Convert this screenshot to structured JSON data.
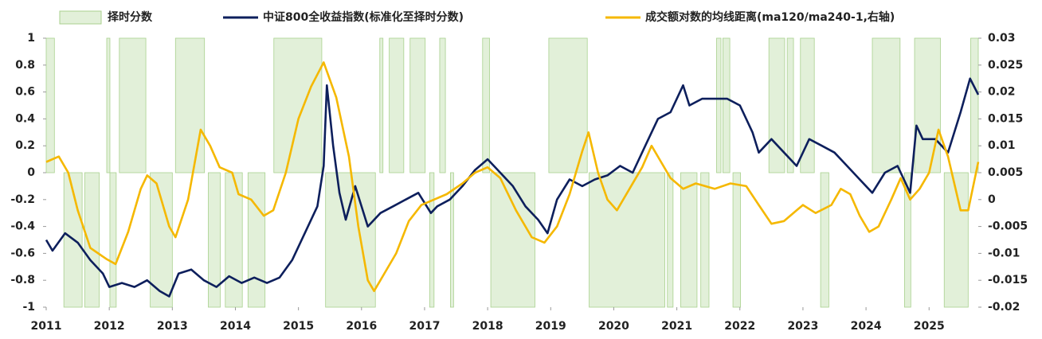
{
  "chart_data": {
    "type": "line",
    "xlim": [
      2011,
      2025.78
    ],
    "xticks": [
      2011,
      2012,
      2013,
      2014,
      2015,
      2016,
      2017,
      2018,
      2019,
      2020,
      2021,
      2022,
      2023,
      2024,
      2025
    ],
    "ylim": [
      -1,
      1
    ],
    "yticks": [
      1,
      0.8,
      0.6,
      0.4,
      0.2,
      0,
      -0.2,
      -0.4,
      -0.6,
      -0.8,
      -1
    ],
    "y2lim": [
      -0.02,
      0.03
    ],
    "y2ticks": [
      0.03,
      0.025,
      0.02,
      0.015,
      0.01,
      0.005,
      0,
      -0.005,
      -0.01,
      -0.015,
      -0.02
    ],
    "legend": "top",
    "series": [
      {
        "name": "择时分数",
        "color": "#e2f0d9",
        "style": "step-area",
        "bins": [
          2011.0,
          2011.13,
          2011.28,
          2011.57,
          2011.61,
          2011.84,
          2011.96,
          2012.01,
          2012.11,
          2012.16,
          2012.58,
          2012.65,
          2013.0,
          2013.05,
          2013.51,
          2013.57,
          2013.76,
          2013.84,
          2014.11,
          2014.2,
          2014.47,
          2014.61,
          2015.37,
          2015.43,
          2016.22,
          2016.29,
          2016.34,
          2016.44,
          2016.67,
          2016.77,
          2017.01,
          2017.08,
          2017.15,
          2017.24,
          2017.33,
          2017.41,
          2017.46,
          2017.92,
          2018.03,
          2018.05,
          2018.75,
          2018.97,
          2019.58,
          2019.61,
          2020.81,
          2020.85,
          2020.94,
          2021.06,
          2021.32,
          2021.38,
          2021.51,
          2021.63,
          2021.7,
          2021.73,
          2021.84,
          2021.89,
          2022.01,
          2022.46,
          2022.71,
          2022.75,
          2022.85,
          2022.96,
          2023.18,
          2023.28,
          2023.41,
          2024.1,
          2024.54,
          2024.61,
          2024.71,
          2024.77,
          2025.18,
          2025.24,
          2025.62,
          2025.66,
          2025.78
        ],
        "values": [
          1,
          0,
          -1,
          0,
          -1,
          0,
          1,
          -1,
          0,
          1,
          0,
          -1,
          0,
          1,
          0,
          -1,
          0,
          -1,
          0,
          -1,
          0,
          1,
          0,
          -1,
          0,
          1,
          0,
          1,
          0,
          1,
          0,
          -1,
          0,
          1,
          0,
          -1,
          0,
          1,
          0,
          -1,
          0,
          1,
          0,
          -1,
          0,
          -1,
          0,
          -1,
          0,
          -1,
          0,
          1,
          0,
          1,
          0,
          -1,
          0,
          1,
          0,
          1,
          0,
          1,
          0,
          -1,
          0,
          1,
          0,
          -1,
          0,
          1,
          0,
          -1,
          0,
          1
        ]
      },
      {
        "name": "中证800全收益指数(标准化至择时分数)",
        "color": "#0d1f5c",
        "x": [
          2011.0,
          2011.1,
          2011.3,
          2011.5,
          2011.7,
          2011.9,
          2012.0,
          2012.2,
          2012.4,
          2012.6,
          2012.8,
          2012.95,
          2013.1,
          2013.3,
          2013.5,
          2013.7,
          2013.9,
          2014.1,
          2014.3,
          2014.5,
          2014.7,
          2014.9,
          2015.1,
          2015.3,
          2015.4,
          2015.45,
          2015.55,
          2015.65,
          2015.75,
          2015.9,
          2016.0,
          2016.1,
          2016.3,
          2016.5,
          2016.7,
          2016.9,
          2017.1,
          2017.2,
          2017.4,
          2017.6,
          2017.8,
          2018.0,
          2018.2,
          2018.4,
          2018.6,
          2018.8,
          2018.95,
          2019.1,
          2019.3,
          2019.5,
          2019.7,
          2019.9,
          2020.1,
          2020.3,
          2020.5,
          2020.7,
          2020.9,
          2021.1,
          2021.2,
          2021.4,
          2021.6,
          2021.8,
          2022.0,
          2022.2,
          2022.3,
          2022.5,
          2022.7,
          2022.9,
          2023.1,
          2023.3,
          2023.5,
          2023.7,
          2023.9,
          2024.1,
          2024.3,
          2024.5,
          2024.7,
          2024.8,
          2024.9,
          2025.1,
          2025.3,
          2025.5,
          2025.65,
          2025.78
        ],
        "values": [
          -0.5,
          -0.58,
          -0.45,
          -0.52,
          -0.65,
          -0.75,
          -0.85,
          -0.82,
          -0.85,
          -0.8,
          -0.88,
          -0.92,
          -0.75,
          -0.72,
          -0.8,
          -0.85,
          -0.77,
          -0.82,
          -0.78,
          -0.82,
          -0.78,
          -0.65,
          -0.45,
          -0.25,
          0.05,
          0.65,
          0.2,
          -0.15,
          -0.35,
          -0.1,
          -0.25,
          -0.4,
          -0.3,
          -0.25,
          -0.2,
          -0.15,
          -0.3,
          -0.25,
          -0.2,
          -0.1,
          0.02,
          0.1,
          0.0,
          -0.1,
          -0.25,
          -0.35,
          -0.45,
          -0.2,
          -0.05,
          -0.1,
          -0.05,
          -0.02,
          0.05,
          0.0,
          0.2,
          0.4,
          0.45,
          0.65,
          0.5,
          0.55,
          0.55,
          0.55,
          0.5,
          0.3,
          0.15,
          0.25,
          0.15,
          0.05,
          0.25,
          0.2,
          0.15,
          0.05,
          -0.05,
          -0.15,
          0.0,
          0.05,
          -0.15,
          0.35,
          0.25,
          0.25,
          0.15,
          0.45,
          0.7,
          0.58
        ]
      },
      {
        "name": "成交额对数的均线距离(ma120/ma240-1,右轴)",
        "color": "#f5b800",
        "axis": "y2",
        "x": [
          2011.0,
          2011.2,
          2011.35,
          2011.5,
          2011.7,
          2011.95,
          2012.1,
          2012.3,
          2012.5,
          2012.6,
          2012.75,
          2012.95,
          2013.05,
          2013.25,
          2013.45,
          2013.6,
          2013.75,
          2013.95,
          2014.05,
          2014.25,
          2014.45,
          2014.6,
          2014.8,
          2015.0,
          2015.2,
          2015.4,
          2015.6,
          2015.8,
          2015.95,
          2016.1,
          2016.2,
          2016.35,
          2016.55,
          2016.75,
          2016.95,
          2017.15,
          2017.35,
          2017.6,
          2017.8,
          2018.0,
          2018.2,
          2018.45,
          2018.7,
          2018.9,
          2019.1,
          2019.3,
          2019.5,
          2019.6,
          2019.75,
          2019.9,
          2020.05,
          2020.25,
          2020.45,
          2020.6,
          2020.75,
          2020.9,
          2021.1,
          2021.3,
          2021.6,
          2021.85,
          2022.1,
          2022.3,
          2022.5,
          2022.7,
          2022.9,
          2023.0,
          2023.2,
          2023.45,
          2023.6,
          2023.75,
          2023.9,
          2024.05,
          2024.2,
          2024.4,
          2024.55,
          2024.7,
          2024.85,
          2025.0,
          2025.15,
          2025.3,
          2025.5,
          2025.62,
          2025.78
        ],
        "values": [
          0.007,
          0.008,
          0.005,
          -0.002,
          -0.009,
          -0.011,
          -0.012,
          -0.006,
          0.002,
          0.0045,
          0.003,
          -0.005,
          -0.007,
          0.0,
          0.013,
          0.01,
          0.006,
          0.005,
          0.001,
          0.0,
          -0.003,
          -0.002,
          0.005,
          0.015,
          0.021,
          0.0255,
          0.019,
          0.008,
          -0.005,
          -0.015,
          -0.017,
          -0.014,
          -0.01,
          -0.004,
          -0.001,
          0.0,
          0.001,
          0.003,
          0.005,
          0.006,
          0.004,
          -0.002,
          -0.007,
          -0.008,
          -0.005,
          0.001,
          0.009,
          0.0125,
          0.005,
          0.0,
          -0.002,
          0.002,
          0.006,
          0.01,
          0.007,
          0.004,
          0.002,
          0.003,
          0.002,
          0.003,
          0.0025,
          -0.001,
          -0.0045,
          -0.004,
          -0.002,
          -0.001,
          -0.0025,
          -0.001,
          0.002,
          0.001,
          -0.003,
          -0.006,
          -0.005,
          0.0,
          0.004,
          0.0,
          0.002,
          0.005,
          0.013,
          0.008,
          -0.002,
          -0.002,
          0.007
        ]
      }
    ]
  }
}
